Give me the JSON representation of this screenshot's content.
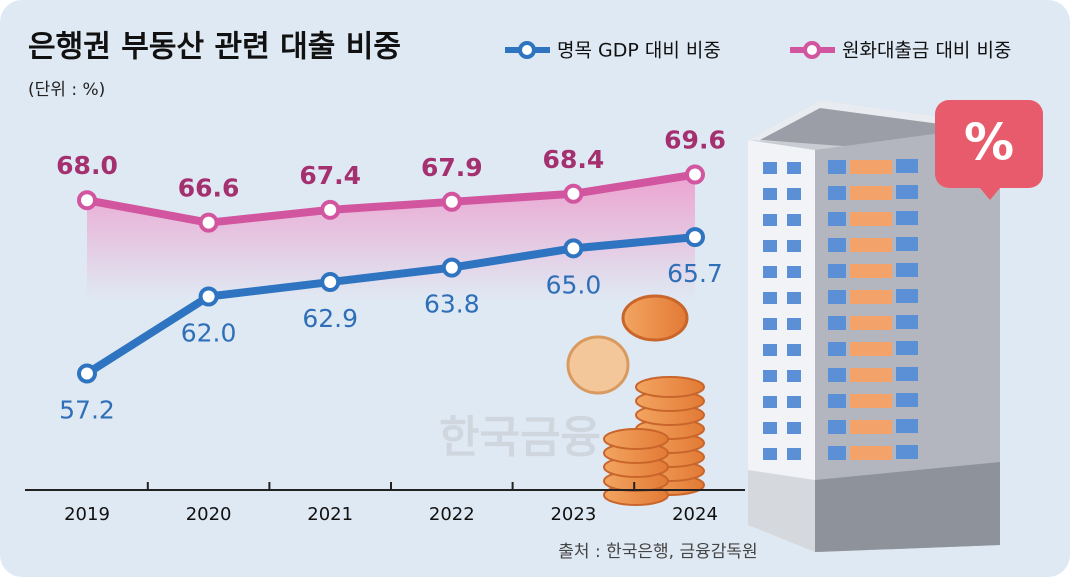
{
  "chart_data": {
    "type": "line",
    "title": "은행권 부동산 관련 대출 비중",
    "subtitle": "(단위 : %)",
    "source": "출처 : 한국은행, 금융감독원",
    "watermark": "한국금융",
    "categories": [
      "2019",
      "2020",
      "2021",
      "2022",
      "2023",
      "2024"
    ],
    "ylim": [
      52,
      72
    ],
    "series": [
      {
        "name": "명목 GDP 대비 비중",
        "color": "#2f74c0",
        "values": [
          57.2,
          62.0,
          62.9,
          63.8,
          65.0,
          65.7
        ],
        "value_labels": [
          "57.2",
          "62.0",
          "62.9",
          "63.8",
          "65.0",
          "65.7"
        ]
      },
      {
        "name": "원화대출금 대비 비중",
        "color": "#d2559f",
        "values": [
          68.0,
          66.6,
          67.4,
          67.9,
          68.4,
          69.6
        ],
        "value_labels": [
          "68.0",
          "66.6",
          "67.4",
          "67.9",
          "68.4",
          "69.6"
        ]
      }
    ]
  }
}
